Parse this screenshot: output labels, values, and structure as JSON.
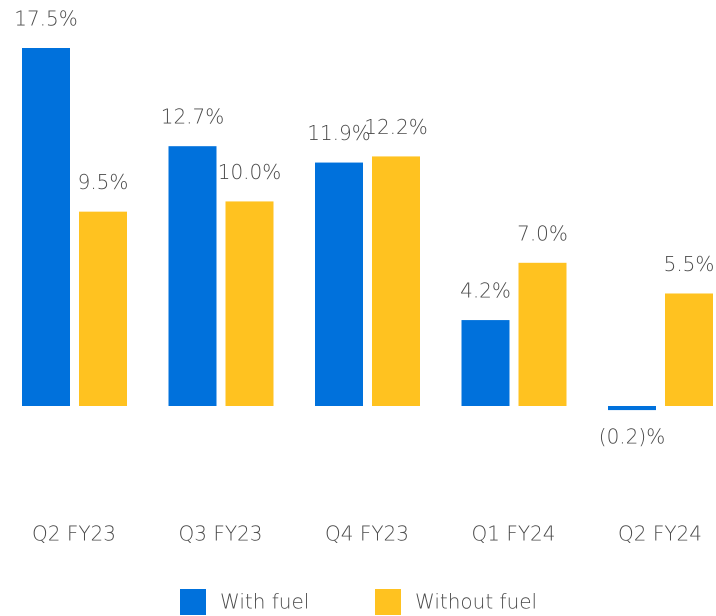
{
  "chart_data": {
    "type": "bar",
    "categories": [
      "Q2 FY23",
      "Q3 FY23",
      "Q4 FY23",
      "Q1 FY24",
      "Q2 FY24"
    ],
    "series": [
      {
        "name": "With fuel",
        "color": "#0071dc",
        "values": [
          17.5,
          12.7,
          11.9,
          4.2,
          -0.2
        ],
        "value_labels": [
          "17.5%",
          "12.7%",
          "11.9%",
          "4.2%",
          "(0.2)%"
        ]
      },
      {
        "name": "Without fuel",
        "color": "#ffc220",
        "values": [
          9.5,
          10.0,
          12.2,
          7.0,
          5.5
        ],
        "value_labels": [
          "9.5%",
          "10.0%",
          "12.2%",
          "7.0%",
          "5.5%"
        ]
      }
    ]
  }
}
